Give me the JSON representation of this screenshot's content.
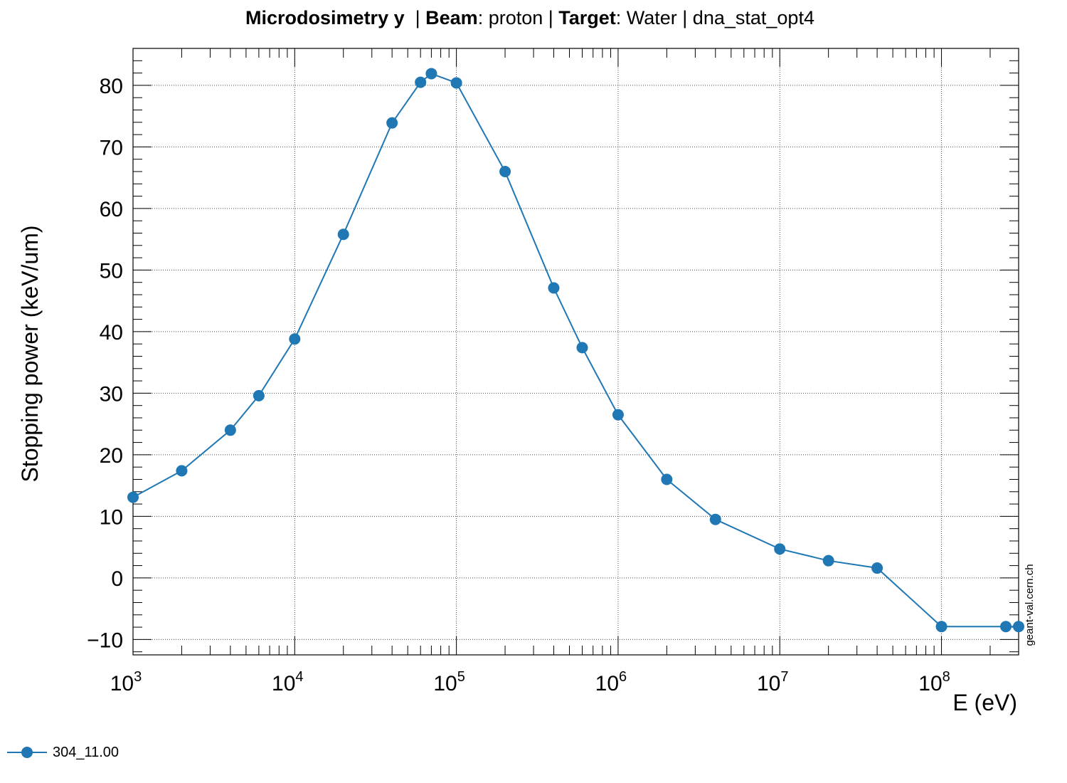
{
  "title": {
    "part1_bold": "Microdosimetry y",
    "part2": "  | ",
    "part3_bold": "Beam",
    "part4": ": proton | ",
    "part5_bold": "Target",
    "part6": ": Water | dna_stat_opt4"
  },
  "watermark": "geant-val.cern.ch",
  "colors": {
    "series": "#1f77b4",
    "grid": "#000000",
    "axis": "#000000"
  },
  "chart_data": {
    "type": "line",
    "xlabel": "E (eV)",
    "ylabel": "Stopping power (keV/um)",
    "xscale": "log",
    "xlim": [
      1000,
      300000000
    ],
    "ylim": [
      -12.5,
      86
    ],
    "x_ticks": [
      {
        "value": 1000,
        "mantissa": "10",
        "exp": "3"
      },
      {
        "value": 10000,
        "mantissa": "10",
        "exp": "4"
      },
      {
        "value": 100000,
        "mantissa": "10",
        "exp": "5"
      },
      {
        "value": 1000000,
        "mantissa": "10",
        "exp": "6"
      },
      {
        "value": 10000000,
        "mantissa": "10",
        "exp": "7"
      },
      {
        "value": 100000000,
        "mantissa": "10",
        "exp": "8"
      }
    ],
    "y_ticks": [
      {
        "value": -10,
        "label": "−10"
      },
      {
        "value": 0,
        "label": "0"
      },
      {
        "value": 10,
        "label": "10"
      },
      {
        "value": 20,
        "label": "20"
      },
      {
        "value": 30,
        "label": "30"
      },
      {
        "value": 40,
        "label": "40"
      },
      {
        "value": 50,
        "label": "50"
      },
      {
        "value": 60,
        "label": "60"
      },
      {
        "value": 70,
        "label": "70"
      },
      {
        "value": 80,
        "label": "80"
      }
    ],
    "grid": true,
    "legend_position": "bottom-left",
    "series": [
      {
        "name": "304_11.00",
        "color": "#1f77b4",
        "x": [
          1000,
          2000,
          4000,
          6000,
          10000,
          20000,
          40000,
          60000,
          70000,
          100000,
          200000,
          400000,
          600000,
          1000000,
          2000000,
          4000000,
          10000000,
          20000000,
          40000000,
          100000000,
          250000000,
          300000000
        ],
        "y": [
          13.1,
          17.4,
          24.0,
          29.6,
          38.8,
          55.8,
          73.9,
          80.5,
          81.9,
          80.4,
          66.0,
          47.1,
          37.4,
          26.5,
          16.0,
          9.5,
          4.7,
          2.8,
          1.6,
          -7.9,
          -7.9,
          -7.9
        ]
      }
    ]
  }
}
